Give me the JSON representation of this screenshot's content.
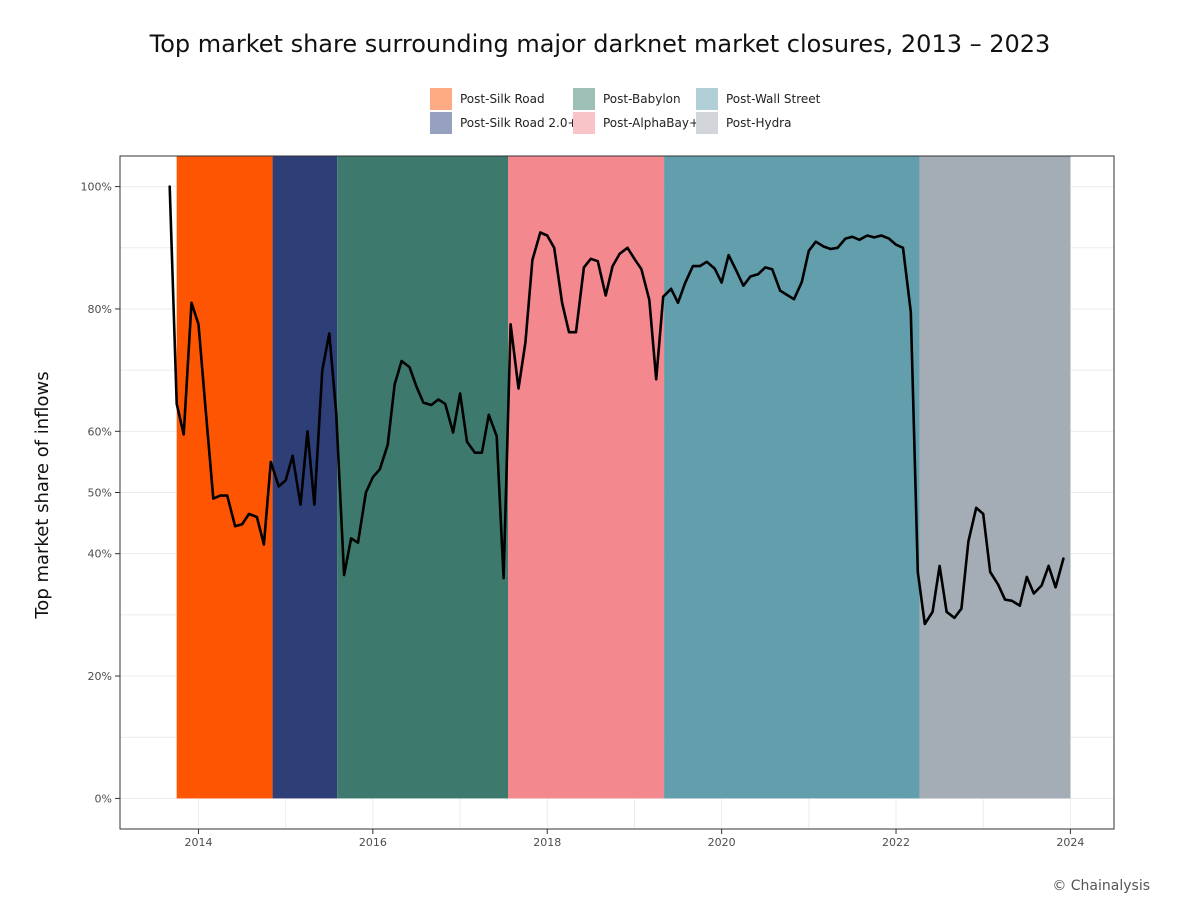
{
  "chart_data": {
    "type": "line",
    "title": "Top market share surrounding major darknet market closures, 2013 – 2023",
    "ylabel": "Top market share of inflows",
    "xlabel": "",
    "credit": "© Chainalysis",
    "xlim": [
      2013.1,
      2024.5
    ],
    "ylim": [
      -0.05,
      1.05
    ],
    "x_ticks": [
      {
        "value": 2014,
        "label": "2014"
      },
      {
        "value": 2016,
        "label": "2016"
      },
      {
        "value": 2018,
        "label": "2018"
      },
      {
        "value": 2020,
        "label": "2020"
      },
      {
        "value": 2022,
        "label": "2022"
      },
      {
        "value": 2024,
        "label": "2024"
      }
    ],
    "y_ticks": [
      {
        "value": 0.0,
        "label": "0%"
      },
      {
        "value": 0.2,
        "label": "20%"
      },
      {
        "value": 0.4,
        "label": "40%"
      },
      {
        "value": 0.5,
        "label": "50%"
      },
      {
        "value": 0.6,
        "label": "60%"
      },
      {
        "value": 0.8,
        "label": "80%"
      },
      {
        "value": 1.0,
        "label": "100%"
      }
    ],
    "legend_position": "top",
    "grid": true,
    "periods": [
      {
        "name": "Post-Silk Road",
        "start": 2013.75,
        "end": 2014.85,
        "color": "#fe5502",
        "legend_color": "#feaa82"
      },
      {
        "name": "Post-Silk Road 2.0+",
        "start": 2014.85,
        "end": 2015.59,
        "color": "#2e3f78",
        "legend_color": "#96a0bf"
      },
      {
        "name": "Post-Babylon",
        "start": 2015.59,
        "end": 2017.55,
        "color": "#3d7a6d",
        "legend_color": "#9ebfb6"
      },
      {
        "name": "Post-AlphaBay+",
        "start": 2017.55,
        "end": 2019.34,
        "color": "#f4888f",
        "legend_color": "#f9c4c7"
      },
      {
        "name": "Post-Wall Street",
        "start": 2019.34,
        "end": 2022.27,
        "color": "#629eac",
        "legend_color": "#b0cfd6"
      },
      {
        "name": "Post-Hydra",
        "start": 2022.27,
        "end": 2024.0,
        "color": "#a4adb5",
        "legend_color": "#d2d6da"
      }
    ],
    "series": [
      {
        "color": "#000000",
        "x": [
          2013.67,
          2013.75,
          2013.83,
          2013.92,
          2014.0,
          2014.08,
          2014.17,
          2014.25,
          2014.33,
          2014.42,
          2014.5,
          2014.58,
          2014.67,
          2014.75,
          2014.83,
          2014.92,
          2015.0,
          2015.08,
          2015.17,
          2015.25,
          2015.33,
          2015.42,
          2015.5,
          2015.58,
          2015.67,
          2015.75,
          2015.83,
          2015.92,
          2016.0,
          2016.08,
          2016.17,
          2016.25,
          2016.33,
          2016.42,
          2016.5,
          2016.58,
          2016.67,
          2016.75,
          2016.83,
          2016.92,
          2017.0,
          2017.08,
          2017.17,
          2017.25,
          2017.33,
          2017.42,
          2017.5,
          2017.58,
          2017.67,
          2017.75,
          2017.83,
          2017.92,
          2018.0,
          2018.08,
          2018.17,
          2018.25,
          2018.33,
          2018.42,
          2018.5,
          2018.58,
          2018.67,
          2018.75,
          2018.83,
          2018.92,
          2019.0,
          2019.08,
          2019.17,
          2019.25,
          2019.33,
          2019.42,
          2019.5,
          2019.58,
          2019.67,
          2019.75,
          2019.83,
          2019.92,
          2020.0,
          2020.08,
          2020.17,
          2020.25,
          2020.33,
          2020.42,
          2020.5,
          2020.58,
          2020.67,
          2020.75,
          2020.83,
          2020.92,
          2021.0,
          2021.08,
          2021.17,
          2021.25,
          2021.33,
          2021.42,
          2021.5,
          2021.58,
          2021.67,
          2021.75,
          2021.83,
          2021.92,
          2022.0,
          2022.08,
          2022.17,
          2022.25,
          2022.33,
          2022.42,
          2022.5,
          2022.58,
          2022.67,
          2022.75,
          2022.83,
          2022.92,
          2023.0,
          2023.08,
          2023.17,
          2023.25,
          2023.33,
          2023.42,
          2023.5,
          2023.58,
          2023.67,
          2023.75,
          2023.83,
          2023.92
        ],
        "y": [
          1.0,
          0.645,
          0.595,
          0.81,
          0.775,
          0.64,
          0.49,
          0.495,
          0.495,
          0.445,
          0.448,
          0.465,
          0.46,
          0.415,
          0.55,
          0.51,
          0.52,
          0.56,
          0.48,
          0.6,
          0.48,
          0.7,
          0.76,
          0.63,
          0.365,
          0.425,
          0.418,
          0.5,
          0.525,
          0.538,
          0.578,
          0.677,
          0.715,
          0.705,
          0.673,
          0.647,
          0.643,
          0.652,
          0.645,
          0.598,
          0.662,
          0.583,
          0.565,
          0.565,
          0.627,
          0.592,
          0.36,
          0.775,
          0.67,
          0.745,
          0.88,
          0.925,
          0.92,
          0.9,
          0.81,
          0.762,
          0.762,
          0.868,
          0.882,
          0.878,
          0.822,
          0.87,
          0.89,
          0.9,
          0.882,
          0.865,
          0.815,
          0.685,
          0.82,
          0.833,
          0.81,
          0.842,
          0.87,
          0.87,
          0.877,
          0.866,
          0.843,
          0.888,
          0.862,
          0.838,
          0.853,
          0.857,
          0.868,
          0.865,
          0.83,
          0.823,
          0.816,
          0.844,
          0.895,
          0.91,
          0.902,
          0.898,
          0.9,
          0.915,
          0.918,
          0.913,
          0.92,
          0.917,
          0.92,
          0.915,
          0.905,
          0.9,
          0.795,
          0.37,
          0.285,
          0.305,
          0.38,
          0.305,
          0.295,
          0.31,
          0.42,
          0.475,
          0.465,
          0.37,
          0.35,
          0.325,
          0.323,
          0.315,
          0.362,
          0.335,
          0.348,
          0.38,
          0.345,
          0.392
        ]
      }
    ]
  }
}
